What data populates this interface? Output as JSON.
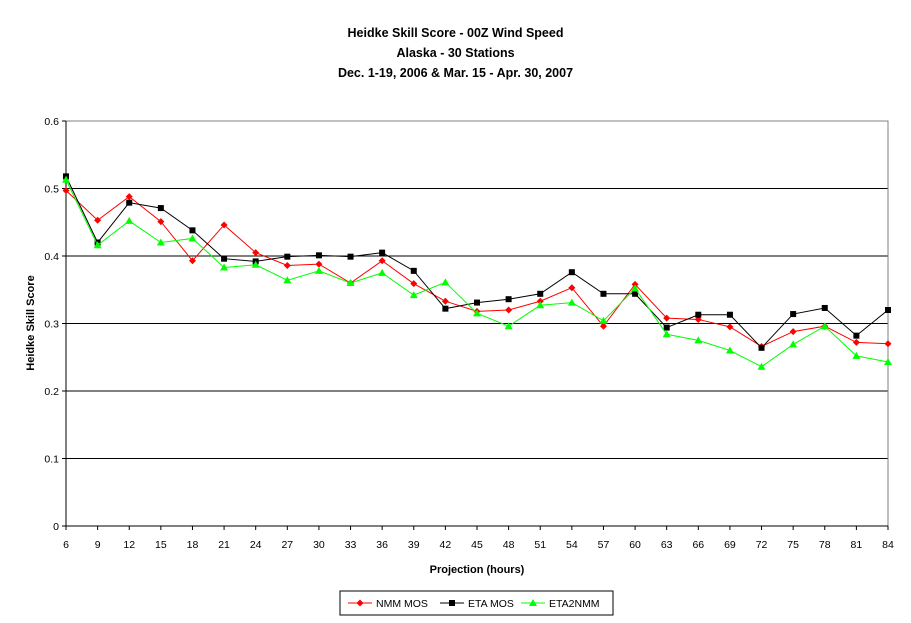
{
  "chart_data": {
    "type": "line",
    "title": "Heidke Skill Score - 00Z Wind Speed",
    "subtitle": [
      "Alaska - 30 Stations",
      "Dec. 1-19, 2006 & Mar. 15 - Apr. 30, 2007"
    ],
    "xlabel": "Projection (hours)",
    "ylabel": "Heidke Skill Score",
    "ylim": [
      0,
      0.6
    ],
    "yticks": [
      "0",
      "0.1",
      "0.2",
      "0.3",
      "0.4",
      "0.5",
      "0.6"
    ],
    "grid": "horizontal",
    "legend_position": "bottom",
    "categories": [
      "6",
      "9",
      "12",
      "15",
      "18",
      "21",
      "24",
      "27",
      "30",
      "33",
      "36",
      "39",
      "42",
      "45",
      "48",
      "51",
      "54",
      "57",
      "60",
      "63",
      "66",
      "69",
      "72",
      "75",
      "78",
      "81",
      "84"
    ],
    "series": [
      {
        "name": "NMM MOS",
        "color": "#ff0000",
        "marker": "diamond",
        "values": [
          0.497,
          0.453,
          0.488,
          0.451,
          0.393,
          0.446,
          0.405,
          0.386,
          0.388,
          0.36,
          0.393,
          0.359,
          0.333,
          0.318,
          0.32,
          0.333,
          0.353,
          0.296,
          0.358,
          0.308,
          0.306,
          0.295,
          0.266,
          0.288,
          0.296,
          0.272,
          0.27
        ]
      },
      {
        "name": "ETA MOS",
        "color": "#000000",
        "marker": "square",
        "values": [
          0.518,
          0.42,
          0.479,
          0.471,
          0.438,
          0.396,
          0.392,
          0.399,
          0.401,
          0.399,
          0.405,
          0.378,
          0.322,
          0.331,
          0.336,
          0.344,
          0.376,
          0.344,
          0.344,
          0.294,
          0.313,
          0.313,
          0.264,
          0.314,
          0.323,
          0.282,
          0.32
        ]
      },
      {
        "name": "ETA2NMM",
        "color": "#00ff00",
        "marker": "triangle",
        "values": [
          0.513,
          0.416,
          0.452,
          0.42,
          0.426,
          0.383,
          0.387,
          0.364,
          0.378,
          0.36,
          0.375,
          0.342,
          0.361,
          0.315,
          0.296,
          0.327,
          0.331,
          0.304,
          0.352,
          0.284,
          0.275,
          0.26,
          0.236,
          0.269,
          0.296,
          0.252,
          0.243
        ]
      }
    ]
  }
}
